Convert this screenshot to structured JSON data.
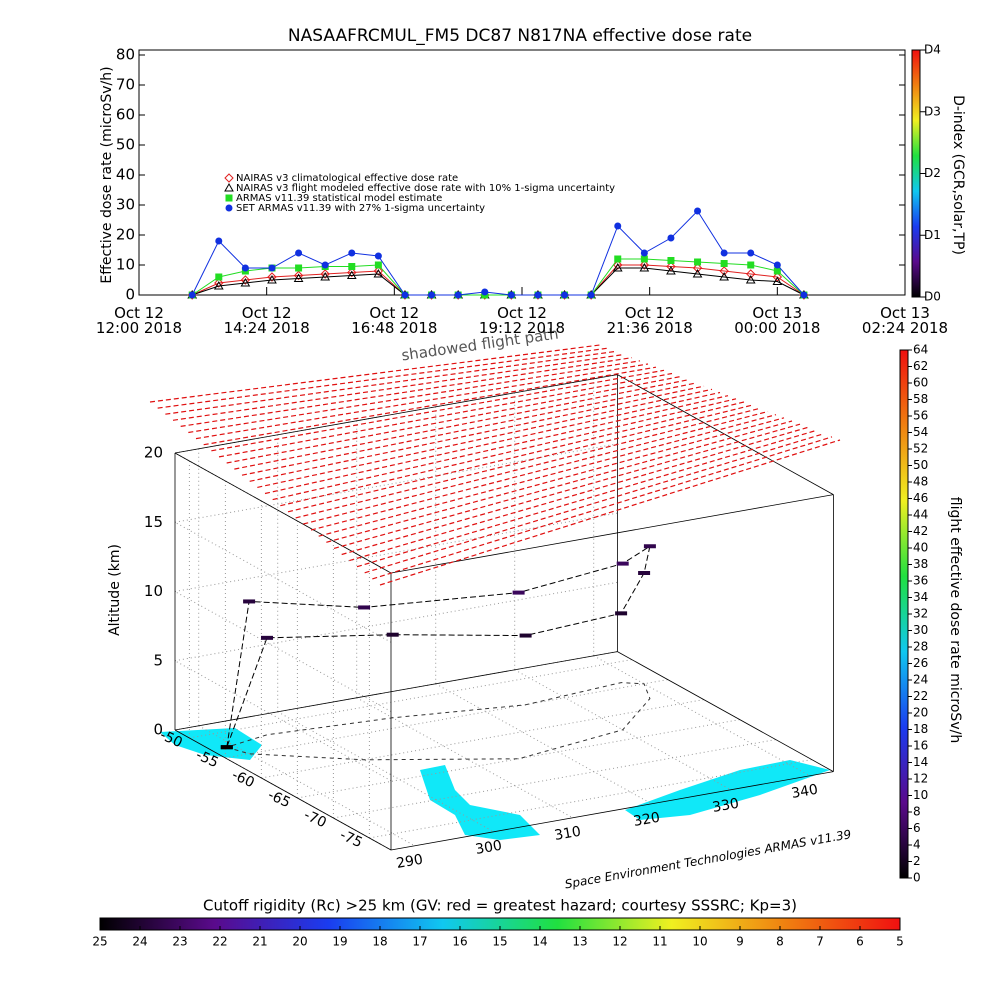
{
  "chart_data": [
    {
      "type": "line",
      "title": "NASAAFRCMUL_FM5 DC87 N817NA effective dose rate",
      "y_label": "Effective dose rate (microSv/h)",
      "x": [
        13,
        13.5,
        14,
        14.5,
        15,
        15.5,
        16,
        16.5,
        17,
        17.5,
        18,
        18.5,
        19,
        19.5,
        20,
        20.5,
        21,
        21.5,
        22,
        22.5,
        23,
        23.5,
        24,
        24.5
      ],
      "series": [
        {
          "name": "NAIRAS v3 climatological effective dose rate",
          "color": "#e02020",
          "marker": "diamond",
          "values": [
            0,
            4,
            5,
            6,
            6.5,
            7,
            7.5,
            8,
            0,
            0,
            0,
            0,
            0,
            0,
            0,
            0,
            10,
            10,
            9.5,
            9,
            8,
            7,
            6,
            0
          ]
        },
        {
          "name": "NAIRAS v3 flight modeled effective dose rate with 10% 1-sigma uncertainty",
          "color": "#000000",
          "marker": "triangle",
          "values": [
            0,
            3,
            4,
            5,
            5.5,
            6,
            6.5,
            7,
            0,
            0,
            0,
            0,
            0,
            0,
            0,
            0,
            9,
            9,
            8,
            7,
            6,
            5,
            4.5,
            0
          ]
        },
        {
          "name": "ARMAS v11.39 statistical model estimate",
          "color": "#22dd22",
          "marker": "square",
          "values": [
            0,
            6,
            8,
            9,
            9,
            9.5,
            9.5,
            10,
            0,
            0,
            0,
            0,
            0,
            0,
            0,
            0,
            12,
            12,
            11.5,
            11,
            10.5,
            10,
            8,
            0
          ]
        },
        {
          "name": "SET ARMAS v11.39 with 27% 1-sigma uncertainty",
          "color": "#1030e0",
          "marker": "circle",
          "values": [
            0,
            18,
            9,
            9,
            14,
            10,
            14,
            13,
            0,
            0,
            0,
            1,
            0,
            0,
            0,
            0,
            23,
            14,
            19,
            28,
            14,
            14,
            10,
            0
          ]
        }
      ],
      "xlim": [
        12,
        26.4
      ],
      "xticks": [
        {
          "value": 12,
          "label": "Oct 12 12:00 2018"
        },
        {
          "value": 14.4,
          "label": "Oct 12 14:24 2018"
        },
        {
          "value": 16.8,
          "label": "Oct 12 16:48 2018"
        },
        {
          "value": 19.2,
          "label": "Oct 12 19:12 2018"
        },
        {
          "value": 21.6,
          "label": "Oct 12 21:36 2018"
        },
        {
          "value": 24,
          "label": "Oct 13 00:00 2018"
        },
        {
          "value": 26.4,
          "label": "Oct 13 02:24 2018"
        }
      ],
      "ylim": [
        0,
        80
      ],
      "yticks": [
        0,
        10,
        20,
        30,
        40,
        50,
        60,
        70,
        80
      ],
      "colorbar": {
        "label": "D-index (GCR,solar,TP)",
        "lim": [
          0,
          4
        ],
        "ticks": [
          {
            "value": 0,
            "label": "D0"
          },
          {
            "value": 1,
            "label": "D1"
          },
          {
            "value": 2,
            "label": "D2"
          },
          {
            "value": 3,
            "label": "D3"
          },
          {
            "value": 4,
            "label": "D4"
          }
        ]
      }
    },
    {
      "type": "scatter3d",
      "annotation": "shadowed flight path",
      "z_label": "Altitude (km)",
      "credit": "Space Environment Technologies ARMAS v11.39",
      "xlim": [
        287,
        343
      ],
      "xticks": [
        290,
        300,
        310,
        320,
        330,
        340
      ],
      "ylim": [
        -48,
        -78
      ],
      "yticks": [
        -50,
        -55,
        -60,
        -65,
        -70,
        -75
      ],
      "zlim": [
        0,
        20
      ],
      "zticks": [
        0,
        5,
        10,
        15,
        20
      ],
      "flight": {
        "lon": [
          289,
          290,
          300,
          315,
          330,
          338,
          340,
          338,
          325,
          310,
          295,
          289
        ],
        "lat": [
          -53,
          -55,
          -60,
          -65,
          -63,
          -58,
          -55,
          -54,
          -55,
          -53,
          -52,
          -53
        ],
        "alt": [
          0,
          11,
          11,
          12,
          12,
          11,
          8,
          5,
          5,
          6,
          7,
          0
        ],
        "dose": [
          0,
          4,
          5,
          6,
          6,
          5,
          4,
          3,
          3,
          3,
          4,
          0
        ]
      },
      "colorbar": {
        "label": "flight effective dose rate microSv/h",
        "lim": [
          0,
          64
        ],
        "ticks": [
          0,
          2,
          4,
          6,
          8,
          10,
          12,
          14,
          16,
          18,
          20,
          22,
          24,
          26,
          28,
          30,
          32,
          34,
          36,
          38,
          40,
          42,
          44,
          46,
          48,
          50,
          52,
          54,
          56,
          58,
          60,
          62,
          64
        ]
      },
      "rigidity_bar": {
        "label": "Cutoff rigidity (Rc) >25 km (GV: red = greatest hazard; courtesy SSSRC; Kp=3)",
        "lim": [
          25,
          5
        ],
        "ticks": [
          25,
          24,
          23,
          22,
          21,
          20,
          19,
          18,
          17,
          16,
          15,
          14,
          13,
          12,
          11,
          10,
          9,
          8,
          7,
          6,
          5
        ]
      }
    }
  ],
  "colormap": [
    "#000000",
    "#5a0a8c",
    "#1a3cf0",
    "#10c8f0",
    "#20e040",
    "#f0f020",
    "#f08010",
    "#f01010"
  ]
}
